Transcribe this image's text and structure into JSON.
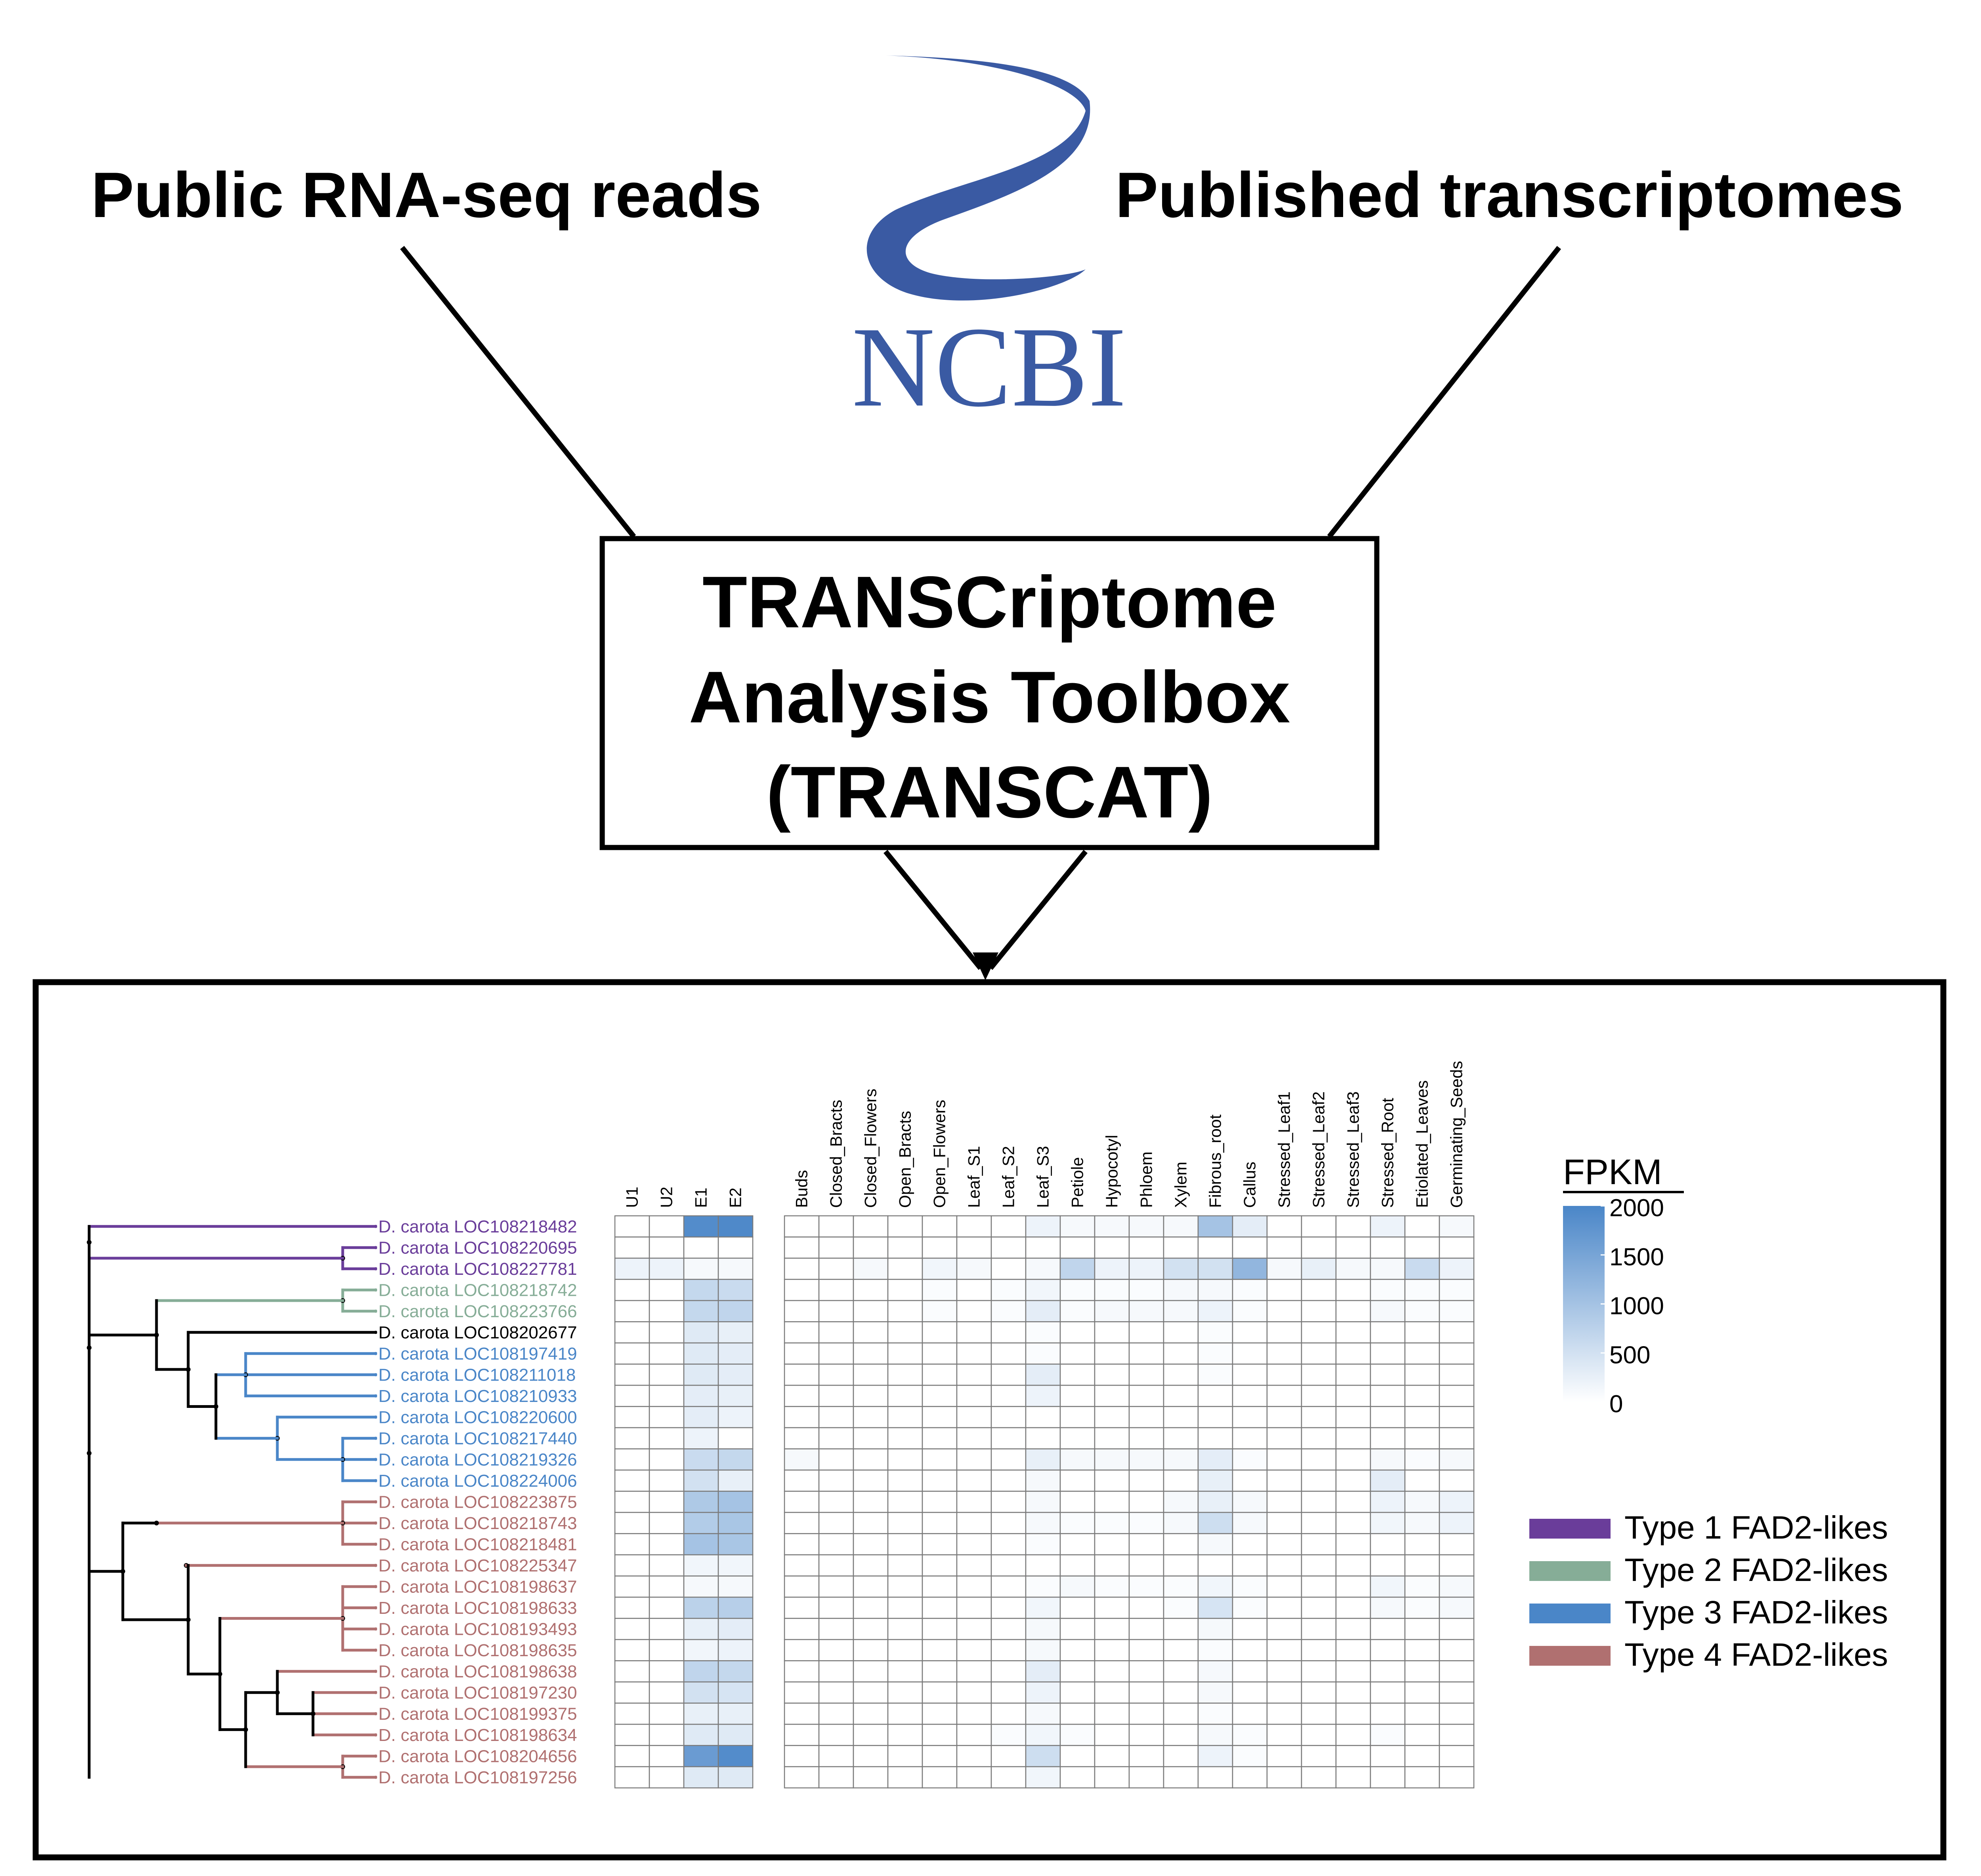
{
  "top": {
    "left_source": "Public RNA-seq reads",
    "right_source": "Published transcriptomes",
    "logo_text": "NCBI"
  },
  "toolbox": {
    "line1": "TRANSCriptome",
    "line2": "Analysis Toolbox",
    "line3": "(TRANSCAT)"
  },
  "colors": {
    "type1": "#6a3d9a",
    "type2": "#86ad97",
    "type3": "#4a86c8",
    "type4": "#b07070",
    "ncbi_blue": "#3a5aa3",
    "heat_max": "#4a86c8"
  },
  "heatmap": {
    "groupA_columns": [
      "U1",
      "U2",
      "E1",
      "E2"
    ],
    "groupB_columns": [
      "Buds",
      "Closed_Bracts",
      "Closed_Flowers",
      "Open_Bracts",
      "Open_Flowers",
      "Leaf_S1",
      "Leaf_S2",
      "Leaf_S3",
      "Petiole",
      "Hypocotyl",
      "Phloem",
      "Xylem",
      "Fibrous_root",
      "Callus",
      "Stressed_Leaf1",
      "Stressed_Leaf2",
      "Stressed_Leaf3",
      "Stressed_Root",
      "Etiolated_Leaves",
      "Germinating_Seeds"
    ],
    "rows": [
      {
        "label": "D. carota LOC108218482",
        "type": 1,
        "a": [
          0,
          0,
          1900,
          1950
        ],
        "b": [
          0,
          0,
          0,
          0,
          0,
          0,
          0,
          200,
          100,
          100,
          100,
          100,
          1000,
          300,
          0,
          0,
          0,
          200,
          0,
          100
        ]
      },
      {
        "label": "D. carota LOC108220695",
        "type": 1,
        "a": [
          0,
          0,
          0,
          0
        ],
        "b": [
          0,
          0,
          0,
          0,
          0,
          0,
          0,
          0,
          0,
          0,
          0,
          0,
          0,
          0,
          0,
          0,
          0,
          0,
          0,
          0
        ]
      },
      {
        "label": "D. carota LOC108227781",
        "type": 1,
        "a": [
          200,
          200,
          100,
          100
        ],
        "b": [
          0,
          0,
          100,
          0,
          150,
          100,
          0,
          100,
          700,
          200,
          200,
          500,
          500,
          1200,
          100,
          250,
          100,
          100,
          600,
          200
        ]
      },
      {
        "label": "D. carota LOC108218742",
        "type": 2,
        "a": [
          0,
          0,
          650,
          600
        ],
        "b": [
          0,
          0,
          0,
          0,
          50,
          0,
          50,
          150,
          50,
          50,
          50,
          100,
          100,
          50,
          0,
          0,
          0,
          50,
          50,
          50
        ]
      },
      {
        "label": "D. carota LOC108223766",
        "type": 2,
        "a": [
          0,
          0,
          650,
          700
        ],
        "b": [
          0,
          0,
          0,
          0,
          50,
          0,
          50,
          300,
          50,
          100,
          100,
          100,
          200,
          50,
          0,
          0,
          0,
          100,
          50,
          50
        ]
      },
      {
        "label": "D. carota LOC108202677",
        "type": 0,
        "a": [
          0,
          0,
          350,
          250
        ],
        "b": [
          0,
          0,
          0,
          0,
          0,
          0,
          0,
          50,
          0,
          0,
          0,
          0,
          50,
          0,
          0,
          0,
          0,
          0,
          0,
          0
        ]
      },
      {
        "label": "D. carota LOC108197419",
        "type": 3,
        "a": [
          0,
          0,
          350,
          300
        ],
        "b": [
          0,
          0,
          0,
          0,
          0,
          0,
          0,
          50,
          0,
          0,
          0,
          0,
          50,
          0,
          0,
          0,
          0,
          0,
          0,
          0
        ]
      },
      {
        "label": "D. carota LOC108211018",
        "type": 3,
        "a": [
          0,
          0,
          350,
          300
        ],
        "b": [
          0,
          0,
          0,
          0,
          0,
          0,
          0,
          300,
          0,
          0,
          0,
          0,
          50,
          0,
          0,
          0,
          0,
          0,
          0,
          0
        ]
      },
      {
        "label": "D. carota LOC108210933",
        "type": 3,
        "a": [
          0,
          0,
          300,
          250
        ],
        "b": [
          0,
          0,
          0,
          0,
          0,
          0,
          0,
          200,
          0,
          0,
          0,
          0,
          0,
          0,
          0,
          0,
          0,
          0,
          0,
          0
        ]
      },
      {
        "label": "D. carota LOC108220600",
        "type": 3,
        "a": [
          0,
          0,
          300,
          200
        ],
        "b": [
          0,
          0,
          0,
          0,
          0,
          0,
          0,
          0,
          0,
          0,
          0,
          0,
          0,
          0,
          0,
          0,
          0,
          0,
          0,
          0
        ]
      },
      {
        "label": "D. carota LOC108217440",
        "type": 3,
        "a": [
          0,
          0,
          200,
          0
        ],
        "b": [
          0,
          0,
          0,
          0,
          0,
          0,
          0,
          0,
          0,
          0,
          0,
          0,
          0,
          0,
          0,
          0,
          0,
          0,
          0,
          0
        ]
      },
      {
        "label": "D. carota LOC108219326",
        "type": 3,
        "a": [
          0,
          0,
          600,
          650
        ],
        "b": [
          100,
          0,
          0,
          0,
          0,
          0,
          0,
          250,
          100,
          100,
          100,
          100,
          300,
          50,
          0,
          0,
          0,
          100,
          50,
          100
        ]
      },
      {
        "label": "D. carota LOC108224006",
        "type": 3,
        "a": [
          0,
          0,
          500,
          250
        ],
        "b": [
          0,
          0,
          0,
          0,
          0,
          0,
          0,
          100,
          0,
          0,
          0,
          0,
          250,
          0,
          0,
          0,
          0,
          300,
          0,
          0
        ]
      },
      {
        "label": "D. carota LOC108223875",
        "type": 4,
        "a": [
          0,
          0,
          900,
          1000
        ],
        "b": [
          0,
          0,
          0,
          0,
          0,
          0,
          0,
          100,
          0,
          0,
          0,
          100,
          250,
          100,
          0,
          0,
          0,
          200,
          100,
          200
        ]
      },
      {
        "label": "D. carota LOC108218743",
        "type": 4,
        "a": [
          0,
          0,
          850,
          950
        ],
        "b": [
          0,
          0,
          0,
          0,
          0,
          0,
          0,
          100,
          50,
          50,
          50,
          100,
          550,
          100,
          0,
          0,
          0,
          150,
          100,
          200
        ]
      },
      {
        "label": "D. carota LOC108218481",
        "type": 4,
        "a": [
          0,
          0,
          1000,
          950
        ],
        "b": [
          0,
          0,
          0,
          0,
          0,
          0,
          0,
          50,
          0,
          0,
          0,
          0,
          100,
          0,
          0,
          0,
          0,
          0,
          0,
          0
        ]
      },
      {
        "label": "D. carota LOC108225347",
        "type": 4,
        "a": [
          0,
          0,
          150,
          150
        ],
        "b": [
          0,
          0,
          0,
          0,
          0,
          0,
          0,
          0,
          0,
          0,
          0,
          0,
          0,
          0,
          0,
          0,
          0,
          0,
          0,
          0
        ]
      },
      {
        "label": "D. carota LOC108198637",
        "type": 4,
        "a": [
          0,
          0,
          100,
          100
        ],
        "b": [
          0,
          0,
          0,
          0,
          0,
          0,
          0,
          50,
          100,
          50,
          50,
          50,
          150,
          50,
          0,
          0,
          0,
          150,
          50,
          100
        ]
      },
      {
        "label": "D. carota LOC108198633",
        "type": 4,
        "a": [
          0,
          0,
          750,
          800
        ],
        "b": [
          0,
          0,
          0,
          0,
          0,
          0,
          0,
          150,
          0,
          0,
          0,
          50,
          450,
          50,
          0,
          0,
          0,
          100,
          50,
          100
        ]
      },
      {
        "label": "D. carota LOC108193493",
        "type": 4,
        "a": [
          0,
          0,
          250,
          300
        ],
        "b": [
          0,
          0,
          0,
          0,
          0,
          0,
          0,
          100,
          0,
          0,
          0,
          0,
          100,
          0,
          0,
          0,
          0,
          0,
          0,
          0
        ]
      },
      {
        "label": "D. carota LOC108198635",
        "type": 4,
        "a": [
          0,
          0,
          150,
          200
        ],
        "b": [
          0,
          0,
          0,
          0,
          0,
          0,
          0,
          100,
          0,
          0,
          0,
          0,
          50,
          0,
          0,
          0,
          0,
          0,
          0,
          0
        ]
      },
      {
        "label": "D. carota LOC108198638",
        "type": 4,
        "a": [
          0,
          0,
          700,
          650
        ],
        "b": [
          0,
          0,
          0,
          0,
          0,
          0,
          0,
          300,
          0,
          0,
          0,
          0,
          100,
          0,
          0,
          0,
          0,
          0,
          0,
          0
        ]
      },
      {
        "label": "D. carota LOC108197230",
        "type": 4,
        "a": [
          0,
          0,
          500,
          450
        ],
        "b": [
          0,
          0,
          0,
          0,
          0,
          0,
          0,
          200,
          0,
          0,
          0,
          0,
          100,
          0,
          0,
          0,
          0,
          0,
          0,
          0
        ]
      },
      {
        "label": "D. carota LOC108199375",
        "type": 4,
        "a": [
          0,
          0,
          250,
          250
        ],
        "b": [
          0,
          0,
          0,
          0,
          0,
          0,
          0,
          100,
          0,
          0,
          0,
          0,
          50,
          0,
          0,
          0,
          0,
          0,
          0,
          0
        ]
      },
      {
        "label": "D. carota LOC108198634",
        "type": 4,
        "a": [
          0,
          0,
          350,
          350
        ],
        "b": [
          0,
          0,
          0,
          0,
          0,
          0,
          50,
          150,
          50,
          0,
          0,
          0,
          100,
          50,
          0,
          0,
          0,
          50,
          0,
          0
        ]
      },
      {
        "label": "D. carota LOC108204656",
        "type": 4,
        "a": [
          0,
          0,
          1650,
          1900
        ],
        "b": [
          0,
          0,
          0,
          0,
          0,
          0,
          0,
          550,
          0,
          0,
          0,
          0,
          200,
          50,
          0,
          0,
          0,
          0,
          0,
          0
        ]
      },
      {
        "label": "D. carota LOC108197256",
        "type": 4,
        "a": [
          0,
          0,
          350,
          350
        ],
        "b": [
          0,
          0,
          0,
          0,
          0,
          0,
          0,
          150,
          0,
          0,
          0,
          0,
          0,
          0,
          0,
          0,
          0,
          0,
          0,
          0
        ]
      }
    ]
  },
  "colorbar": {
    "title": "FPKM",
    "ticks": [
      "2000",
      "1500",
      "1000",
      "500",
      "0"
    ],
    "max": 2000,
    "min": 0
  },
  "legend": [
    {
      "label": "Type 1 FAD2-likes",
      "type": 1
    },
    {
      "label": "Type 2 FAD2-likes",
      "type": 2
    },
    {
      "label": "Type 3 FAD2-likes",
      "type": 3
    },
    {
      "label": "Type 4 FAD2-likes",
      "type": 4
    }
  ]
}
